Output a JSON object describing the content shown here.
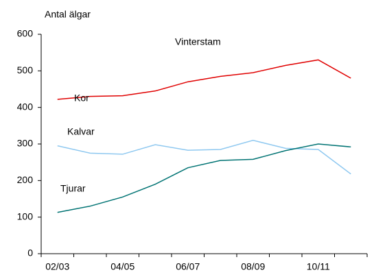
{
  "chart_data": {
    "type": "line",
    "title": "Vinterstam",
    "y_label": "Antal älgar",
    "categories": [
      "02/03",
      null,
      "04/05",
      null,
      "06/07",
      null,
      "08/09",
      null,
      "10/11",
      null
    ],
    "series": [
      {
        "name": "Kor",
        "color": "#e00000",
        "values": [
          422,
          430,
          432,
          445,
          470,
          485,
          495,
          515,
          530,
          480
        ]
      },
      {
        "name": "Kalvar",
        "color": "#8ec8f0",
        "values": [
          295,
          275,
          272,
          298,
          283,
          285,
          310,
          288,
          285,
          218
        ]
      },
      {
        "name": "Tjurar",
        "color": "#007373",
        "values": [
          113,
          130,
          155,
          190,
          235,
          255,
          258,
          282,
          300,
          292
        ]
      }
    ],
    "ylim": [
      0,
      600
    ],
    "yticks": [
      0,
      100,
      200,
      300,
      400,
      500,
      600
    ]
  }
}
